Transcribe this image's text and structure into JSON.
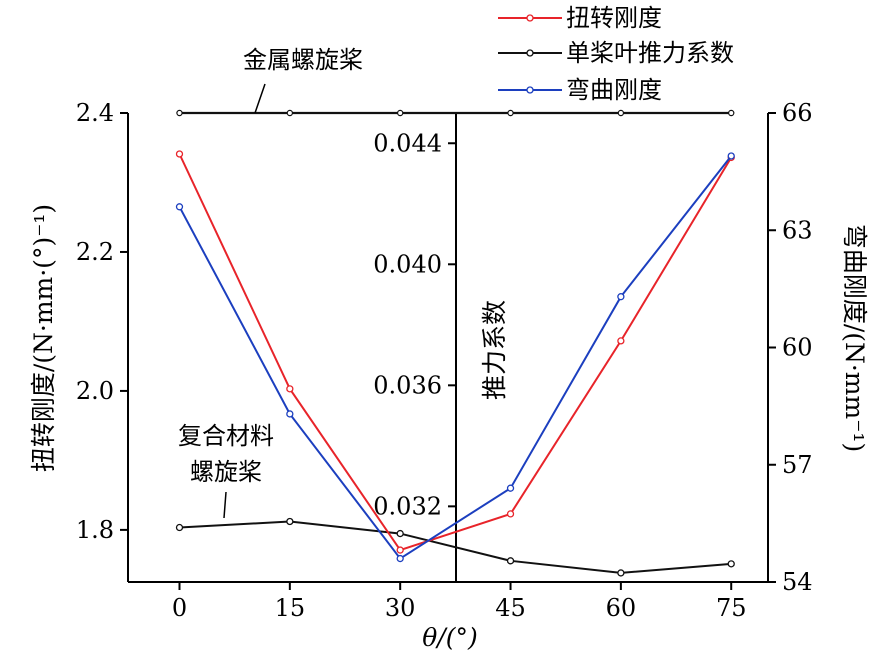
{
  "chart_data": {
    "type": "line",
    "x": [
      0,
      15,
      30,
      45,
      60,
      75
    ],
    "xlabel": "θ/(°)",
    "xticks": [
      "0",
      "15",
      "30",
      "45",
      "60",
      "75"
    ],
    "xlim": [
      -7,
      80
    ],
    "left_axis": {
      "label": "扭转刚度/(N·mm·(°)⁻¹)",
      "ylim": [
        1.725,
        2.4
      ],
      "ticks": [
        "1.8",
        "2.0",
        "2.2",
        "2.4"
      ]
    },
    "inner_axis": {
      "label": "推力系数",
      "ylim": [
        0.0295,
        0.045
      ],
      "ticks": [
        "0.032",
        "0.036",
        "0.040",
        "0.044"
      ]
    },
    "right_axis": {
      "label": "弯曲刚度/(N·mm⁻¹)",
      "ylim": [
        54,
        66
      ],
      "ticks": [
        "54",
        "57",
        "60",
        "63",
        "66"
      ]
    },
    "series": [
      {
        "name": "扭转刚度",
        "axis": "left",
        "color": "#e8242a",
        "values": [
          2.341,
          2.003,
          1.771,
          1.823,
          2.072,
          2.336
        ]
      },
      {
        "name": "单桨叶推力系数",
        "axis": "inner",
        "color": "#111111",
        "values": [
          0.0313,
          0.0315,
          0.0311,
          0.0302,
          0.0298,
          0.0301
        ],
        "note_line": {
          "label": "金属螺旋桨",
          "value": 0.045
        }
      },
      {
        "name": "弯曲刚度",
        "axis": "right",
        "color": "#1c3fbf",
        "values": [
          63.6,
          58.3,
          54.6,
          56.4,
          61.3,
          64.9
        ]
      }
    ],
    "annotations": [
      {
        "text": "金属螺旋桨"
      },
      {
        "text": "复合材料"
      },
      {
        "text": "螺旋桨"
      }
    ],
    "legend_placement": "top-right",
    "grid": false
  }
}
